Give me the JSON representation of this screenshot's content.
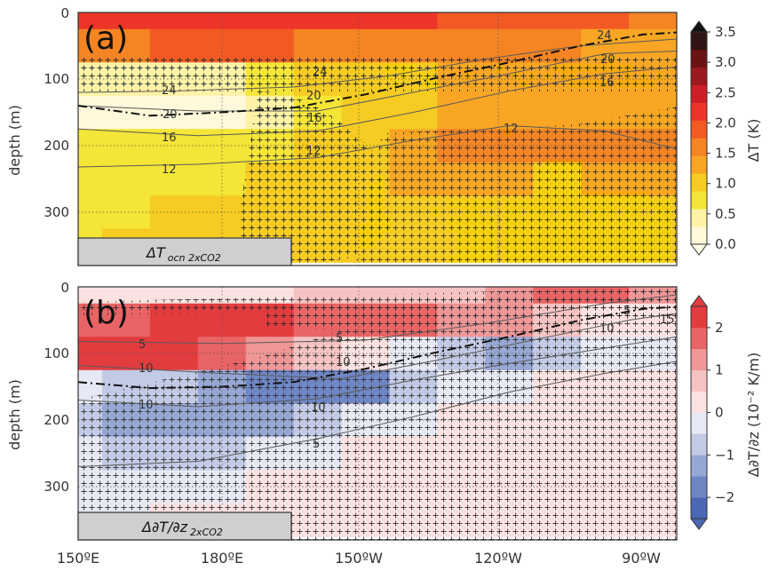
{
  "chart_data": [
    {
      "type": "heatmap",
      "panel_label": "(a)",
      "field_label": "ΔT",
      "field_subscript": "ocn 2xCO2",
      "ylabel": "depth (m)",
      "y_ticks": [
        "0",
        "100",
        "200",
        "300"
      ],
      "y_tick_values": [
        0,
        100,
        200,
        300
      ],
      "ylim": [
        0,
        380
      ],
      "xlim": [
        150,
        275
      ],
      "x_grid_lines": [
        180,
        210,
        240,
        270
      ],
      "x_log_scale": false,
      "colorbar_label": "ΔT (K)",
      "colorbar_ticks": [
        "0.0",
        "0.5",
        "1.0",
        "1.5",
        "2.0",
        "2.5",
        "3.0",
        "3.5"
      ],
      "colorbar_tick_values": [
        0,
        0.5,
        1.0,
        1.5,
        2.0,
        2.5,
        3.0,
        3.5
      ],
      "colorbar_colors": [
        "#fff8da",
        "#fdf2a5",
        "#f4e536",
        "#f6cc22",
        "#f8a624",
        "#f58423",
        "#f25a24",
        "#ec3528",
        "#cd2026",
        "#9b1a1e",
        "#6a1315",
        "#301313"
      ],
      "colorbar_extend": "both",
      "contour_labels": [
        "24",
        "20",
        "16",
        "12",
        "24",
        "20",
        "16",
        "12",
        "24",
        "20",
        "16",
        "12"
      ],
      "thermocline": [
        [
          150,
          140
        ],
        [
          165,
          155
        ],
        [
          180,
          150
        ],
        [
          195,
          143
        ],
        [
          210,
          123
        ],
        [
          225,
          98
        ],
        [
          240,
          75
        ],
        [
          255,
          50
        ],
        [
          268,
          33
        ],
        [
          275,
          30
        ]
      ],
      "contours": [
        {
          "level": 24,
          "points": [
            [
              150,
              120
            ],
            [
              170,
              118
            ],
            [
              195,
              112
            ],
            [
              215,
              95
            ],
            [
              235,
              70
            ],
            [
              255,
              50
            ],
            [
              275,
              40
            ]
          ]
        },
        {
          "level": 20,
          "points": [
            [
              150,
              140
            ],
            [
              175,
              148
            ],
            [
              200,
              148
            ],
            [
              220,
              120
            ],
            [
              240,
              92
            ],
            [
              260,
              62
            ],
            [
              275,
              58
            ]
          ]
        },
        {
          "level": 16,
          "points": [
            [
              150,
              175
            ],
            [
              175,
              185
            ],
            [
              200,
              178
            ],
            [
              220,
              150
            ],
            [
              240,
              118
            ],
            [
              260,
              92
            ],
            [
              275,
              82
            ]
          ]
        },
        {
          "level": 12,
          "points": [
            [
              150,
              232
            ],
            [
              175,
              228
            ],
            [
              200,
              218
            ],
            [
              220,
              192
            ],
            [
              240,
              170
            ],
            [
              260,
              178
            ],
            [
              275,
              205
            ]
          ]
        }
      ],
      "grid": {
        "x": [
          150,
          160,
          170,
          180,
          190,
          200,
          210,
          220,
          230,
          240,
          250,
          260,
          270
        ],
        "y": [
          0,
          50,
          100,
          150,
          200,
          250,
          300,
          350
        ],
        "z": [
          [
            2.4,
            2.4,
            2.5,
            2.5,
            2.4,
            2.4,
            2.3,
            2.3,
            2.2,
            2.2,
            2.1,
            2.0,
            1.9
          ],
          [
            1.8,
            1.9,
            2.0,
            2.0,
            2.0,
            1.9,
            1.8,
            1.8,
            1.8,
            1.8,
            1.7,
            1.5,
            1.4
          ],
          [
            0.6,
            0.5,
            0.5,
            0.6,
            0.8,
            1.0,
            1.1,
            1.2,
            1.3,
            1.3,
            1.3,
            1.4,
            1.4
          ],
          [
            0.2,
            0.1,
            0.1,
            0.2,
            0.4,
            0.8,
            1.0,
            1.2,
            1.3,
            1.4,
            1.4,
            1.5,
            1.5
          ],
          [
            0.7,
            0.7,
            0.8,
            0.9,
            0.9,
            1.0,
            1.1,
            1.3,
            1.6,
            1.6,
            1.6,
            1.6,
            1.6
          ],
          [
            0.9,
            0.9,
            0.9,
            0.9,
            1.0,
            1.1,
            1.2,
            1.3,
            1.4,
            1.3,
            1.2,
            1.3,
            1.4
          ],
          [
            0.9,
            0.9,
            1.0,
            1.0,
            1.1,
            1.1,
            1.2,
            1.2,
            1.2,
            1.2,
            1.2,
            1.2,
            1.2
          ],
          [
            0.9,
            1.0,
            1.0,
            1.1,
            1.1,
            1.2,
            1.2,
            1.2,
            1.2,
            1.2,
            1.2,
            1.2,
            1.2
          ]
        ]
      }
    },
    {
      "type": "heatmap",
      "panel_label": "(b)",
      "field_label": "Δ∂T/∂z",
      "field_subscript": "2xCO2",
      "ylabel": "depth (m)",
      "y_ticks": [
        "0",
        "100",
        "200",
        "300"
      ],
      "y_tick_values": [
        0,
        100,
        200,
        300
      ],
      "ylim": [
        0,
        380
      ],
      "xlim": [
        150,
        275
      ],
      "x_ticks": [
        "150ºE",
        "180ºE",
        "150ºW",
        "120ºW",
        "90ºW"
      ],
      "x_tick_values": [
        150,
        180,
        210,
        240,
        270
      ],
      "x_log_scale": false,
      "colorbar_label": "Δ∂T/∂z (10⁻² K/m)",
      "colorbar_ticks": [
        "−2",
        "−1",
        "0",
        "1",
        "2"
      ],
      "colorbar_tick_values": [
        -2,
        -1,
        0,
        1,
        2
      ],
      "colorbar_min": -2.5,
      "colorbar_max": 2.5,
      "colorbar_colors": [
        "#4a68b3",
        "#6f86c4",
        "#97a7d4",
        "#c2cae5",
        "#e6e8f3",
        "#fbe2e0",
        "#f6c3c3",
        "#ef9697",
        "#e96465",
        "#e23c3f"
      ],
      "colorbar_extend": "both",
      "contour_labels": [
        "5",
        "10",
        "10",
        "5",
        "5",
        "10",
        "10",
        "5",
        "5",
        "10",
        "15"
      ],
      "thermocline": [
        [
          150,
          143
        ],
        [
          165,
          152
        ],
        [
          180,
          150
        ],
        [
          195,
          143
        ],
        [
          210,
          123
        ],
        [
          225,
          98
        ],
        [
          240,
          75
        ],
        [
          255,
          50
        ],
        [
          268,
          33
        ],
        [
          275,
          30
        ]
      ],
      "contours": [
        {
          "level": 5,
          "points": [
            [
              150,
              270
            ],
            [
              175,
              262
            ],
            [
              200,
              228
            ],
            [
              220,
              195
            ],
            [
              240,
              158
            ],
            [
              260,
              130
            ],
            [
              275,
              112
            ]
          ]
        },
        {
          "level": 5,
          "points": [
            [
              150,
              82
            ],
            [
              180,
              85
            ],
            [
              210,
              80
            ],
            [
              235,
              55
            ],
            [
              260,
              25
            ],
            [
              275,
              12
            ]
          ]
        },
        {
          "level": 10,
          "points": [
            [
              150,
              118
            ],
            [
              180,
              130
            ],
            [
              205,
              138
            ],
            [
              225,
              110
            ],
            [
              245,
              80
            ],
            [
              265,
              50
            ],
            [
              275,
              40
            ]
          ]
        },
        {
          "level": 10,
          "points": [
            [
              150,
              170
            ],
            [
              175,
              180
            ],
            [
              200,
              168
            ],
            [
              220,
              140
            ],
            [
              240,
              115
            ],
            [
              260,
              92
            ],
            [
              275,
              75
            ]
          ]
        }
      ],
      "grid": {
        "x": [
          150,
          160,
          170,
          180,
          190,
          200,
          210,
          220,
          230,
          240,
          250,
          260,
          270
        ],
        "y": [
          0,
          50,
          100,
          150,
          200,
          250,
          300,
          350
        ],
        "z": [
          [
            0.0,
            0.0,
            0.1,
            0.2,
            0.4,
            0.5,
            0.6,
            0.6,
            0.8,
            1.0,
            1.5,
            1.5,
            1.2
          ],
          [
            1.8,
            1.9,
            2.0,
            2.0,
            2.0,
            1.9,
            1.8,
            1.7,
            1.4,
            1.0,
            0.6,
            0.3,
            0.1
          ],
          [
            2.0,
            2.1,
            2.0,
            1.6,
            1.2,
            0.8,
            0.4,
            -0.3,
            -0.9,
            -1.3,
            -1.0,
            -0.4,
            -0.2
          ],
          [
            -0.3,
            -0.6,
            -1.0,
            -1.4,
            -1.6,
            -1.7,
            -1.6,
            -1.0,
            -0.4,
            -0.2,
            0.1,
            0.2,
            0.2
          ],
          [
            -0.8,
            -1.1,
            -1.2,
            -1.3,
            -1.2,
            -0.8,
            -0.4,
            -0.2,
            0.1,
            0.2,
            0.3,
            0.3,
            0.3
          ],
          [
            -0.5,
            -0.7,
            -0.8,
            -0.7,
            -0.5,
            -0.3,
            0.1,
            0.2,
            0.3,
            0.3,
            0.3,
            0.3,
            0.3
          ],
          [
            -0.3,
            -0.3,
            -0.3,
            -0.2,
            0.1,
            0.2,
            0.3,
            0.3,
            0.3,
            0.3,
            0.3,
            0.3,
            0.3
          ],
          [
            -0.2,
            -0.2,
            0.1,
            0.2,
            0.2,
            0.3,
            0.3,
            0.3,
            0.3,
            0.3,
            0.3,
            0.3,
            0.3
          ]
        ]
      }
    }
  ]
}
